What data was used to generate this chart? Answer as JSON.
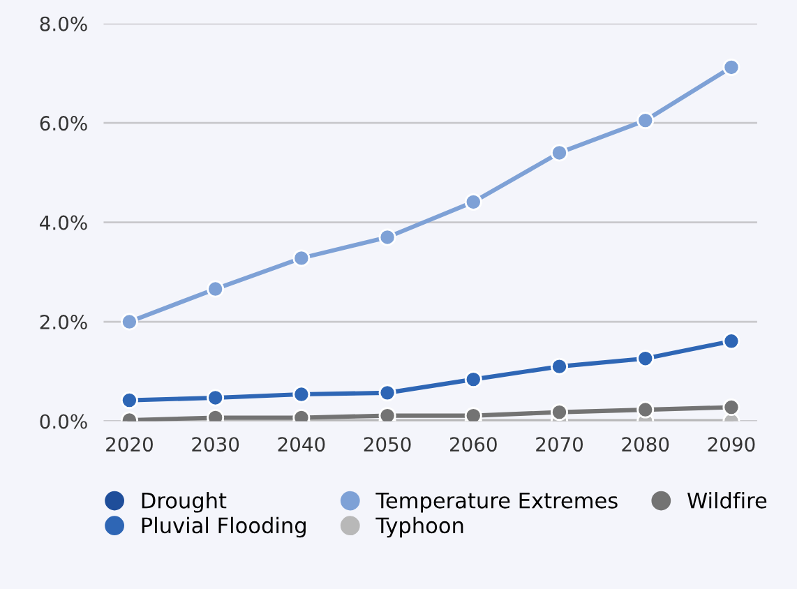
{
  "chart_data": {
    "type": "line",
    "categories": [
      "2020",
      "2030",
      "2040",
      "2050",
      "2060",
      "2070",
      "2080",
      "2090"
    ],
    "series": [
      {
        "name": "Drought",
        "color": "#1f4e9a",
        "values": [
          null,
          null,
          null,
          null,
          null,
          null,
          null,
          null
        ]
      },
      {
        "name": "Pluvial Flooding",
        "color": "#2e66b5",
        "values": [
          0.42,
          0.47,
          0.54,
          0.57,
          0.84,
          1.1,
          1.26,
          1.61
        ]
      },
      {
        "name": "Temperature Extremes",
        "color": "#7ea1d6",
        "values": [
          2.0,
          2.66,
          3.28,
          3.7,
          4.41,
          5.4,
          6.05,
          7.12
        ]
      },
      {
        "name": "Typhoon",
        "color": "#b8b8b8",
        "values": [
          0,
          0,
          0,
          0,
          0,
          0,
          0,
          0
        ]
      },
      {
        "name": "Wildfire",
        "color": "#737373",
        "values": [
          0.02,
          0.07,
          0.07,
          0.11,
          0.11,
          0.18,
          0.23,
          0.28
        ]
      }
    ],
    "ylim": [
      0,
      8
    ],
    "yticks": [
      {
        "value": 0,
        "label": "0.0%"
      },
      {
        "value": 2,
        "label": "2.0%"
      },
      {
        "value": 4,
        "label": "4.0%"
      },
      {
        "value": 6,
        "label": "6.0%"
      },
      {
        "value": 8,
        "label": "8.0%"
      }
    ],
    "grid": "y",
    "legend": "bottom",
    "marker": "circle",
    "line_style": "solid"
  }
}
